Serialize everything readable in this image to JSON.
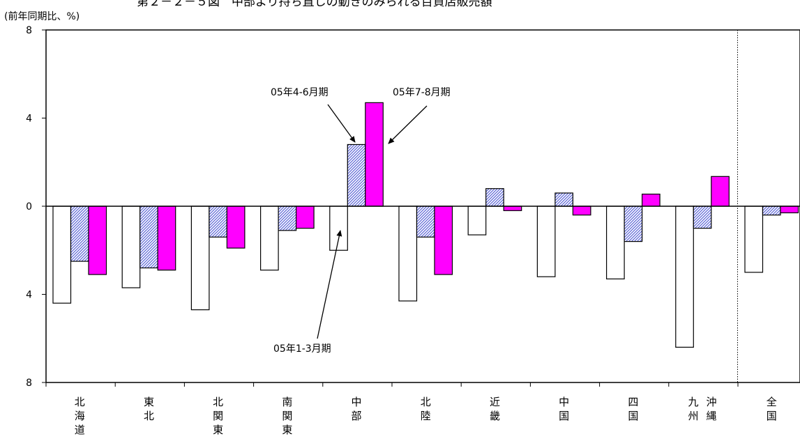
{
  "chart_data": {
    "type": "bar",
    "title": "第２－２－５図　中部より持ち直しの動きのみられる百貨店販売額",
    "unit_label": "(前年同期比、%)",
    "ylim": [
      -8,
      8
    ],
    "y_ticks": [
      8,
      4,
      0,
      -4,
      -8
    ],
    "y_tick_labels": [
      "8",
      "4",
      "0",
      "4",
      "8"
    ],
    "grid": false,
    "legend": "none",
    "categories": [
      "北海道",
      "東北",
      "北関東",
      "南関東",
      "中部",
      "北陸",
      "近畿",
      "中国",
      "四国",
      "九州沖縄",
      "全国"
    ],
    "category_labels": [
      [
        "北",
        "海",
        "道"
      ],
      [
        "東",
        "北"
      ],
      [
        "北",
        "関",
        "東"
      ],
      [
        "南",
        "関",
        "東"
      ],
      [
        "中",
        "部"
      ],
      [
        "北",
        "陸"
      ],
      [
        "近",
        "畿"
      ],
      [
        "中",
        "国"
      ],
      [
        "四",
        "国"
      ],
      [
        "九",
        "州"
      ],
      [
        "全",
        "国"
      ]
    ],
    "category_labels_2": [
      null,
      null,
      null,
      null,
      null,
      null,
      null,
      null,
      null,
      [
        "沖",
        "縄"
      ],
      null
    ],
    "series": [
      {
        "name": "05年1-3月期",
        "color": "#ffffff",
        "pattern": "none",
        "values": [
          -4.4,
          -3.7,
          -4.7,
          -2.9,
          -2.0,
          -4.3,
          -1.3,
          -3.2,
          -3.3,
          -6.4,
          -3.0
        ]
      },
      {
        "name": "05年4-6月期",
        "color": "#5a64d6",
        "pattern": "hatch",
        "values": [
          -2.5,
          -2.8,
          -1.4,
          -1.1,
          2.8,
          -1.4,
          0.8,
          0.6,
          -1.6,
          -1.0,
          -0.4
        ]
      },
      {
        "name": "05年7-8月期",
        "color": "#ff00ff",
        "pattern": "solid",
        "values": [
          -3.1,
          -2.9,
          -1.9,
          -1.0,
          4.7,
          -3.1,
          -0.2,
          -0.4,
          0.55,
          1.35,
          -0.3
        ]
      }
    ],
    "annotations": [
      {
        "text": "05年4-6月期",
        "series": 1,
        "category": 4
      },
      {
        "text": "05年7-8月期",
        "series": 2,
        "category": 4
      },
      {
        "text": "05年1-3月期",
        "series": 0,
        "category": 4
      }
    ],
    "separator_before_category": 10
  }
}
